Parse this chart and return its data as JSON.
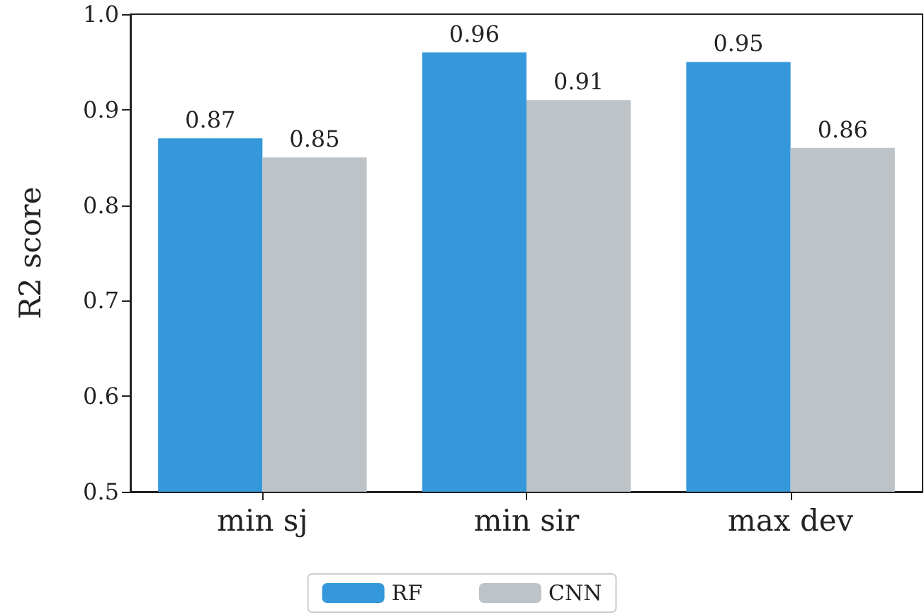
{
  "chart_data": {
    "type": "bar",
    "ylabel": "R2 score",
    "categories": [
      "min sj",
      "min sir",
      "max dev"
    ],
    "series": [
      {
        "name": "RF",
        "color": "#3498db",
        "values": [
          0.87,
          0.96,
          0.95
        ]
      },
      {
        "name": "CNN",
        "color": "#bdc3c7",
        "values": [
          0.85,
          0.91,
          0.86
        ]
      }
    ],
    "ylim": [
      0.5,
      1.0
    ],
    "yticks": [
      0.5,
      0.6,
      0.7,
      0.8,
      0.9,
      {
        "value": 1.0,
        "label": "1.0"
      }
    ],
    "data_labels": true,
    "legend": "bottom",
    "grid": false
  }
}
